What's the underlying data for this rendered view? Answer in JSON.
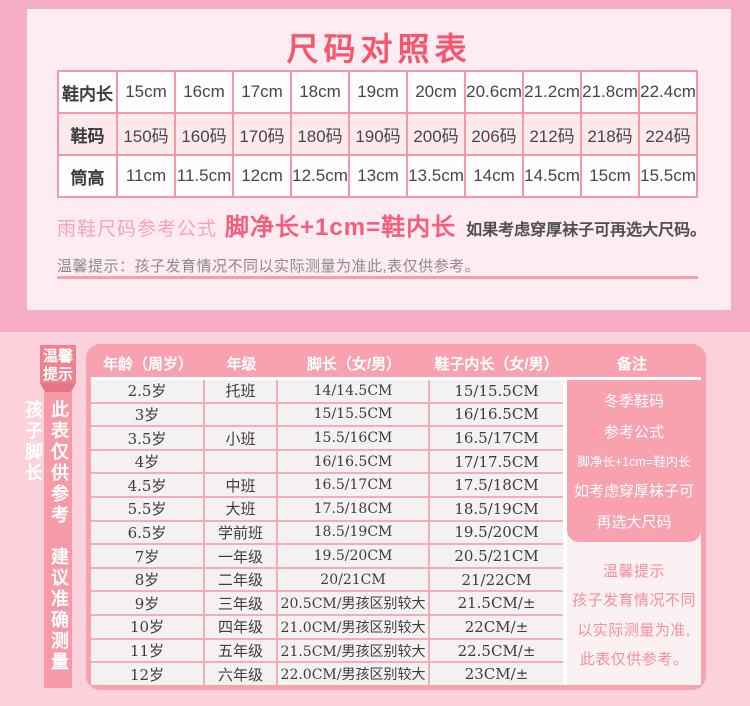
{
  "colors": {
    "accent_title": "#f4566e",
    "salmon_table": "#f7a2ae",
    "outer_background": "#f5aec5",
    "section_background": "#fbd2dc",
    "formula_text": "#f25f7d"
  },
  "chart_data": [
    {
      "type": "table",
      "title": "尺码对照表",
      "rows": [
        {
          "label": "鞋内长",
          "values": [
            "15cm",
            "16cm",
            "17cm",
            "18cm",
            "19cm",
            "20cm",
            "20.6cm",
            "21.2cm",
            "21.8cm",
            "22.4cm"
          ]
        },
        {
          "label": "鞋码",
          "values": [
            "150码",
            "160码",
            "170码",
            "180码",
            "190码",
            "200码",
            "206码",
            "212码",
            "218码",
            "224码"
          ]
        },
        {
          "label": "筒高",
          "values": [
            "11cm",
            "11.5cm",
            "12cm",
            "12.5cm",
            "13cm",
            "13.5cm",
            "14cm",
            "14.5cm",
            "15cm",
            "15.5cm"
          ]
        }
      ],
      "note_prefix": "雨鞋尺码参考公式",
      "note_formula": "脚净长+1cm=鞋内长",
      "note_suffix": "如果考虑穿厚袜子可再选大尺码。",
      "note_tip": "温馨提示：孩子发育情况不同以实际测量为准此,表仅供参考。"
    },
    {
      "type": "table",
      "sidebar_badge": "温馨提示",
      "sidebar_text": "此表仅供参考　建议准确测量孩子脚长",
      "headers": [
        "年龄（周岁）",
        "年级",
        "脚长（女/男）",
        "鞋子内长（女/男）",
        "备注"
      ],
      "rows": [
        {
          "age": "2.5岁",
          "grade": "托班",
          "foot": "14/14.5CM",
          "inner": "15/15.5CM"
        },
        {
          "age": "3岁",
          "grade": "",
          "foot": "15/15.5CM",
          "inner": "16/16.5CM"
        },
        {
          "age": "3.5岁",
          "grade": "小班",
          "foot": "15.5/16CM",
          "inner": "16.5/17CM"
        },
        {
          "age": "4岁",
          "grade": "",
          "foot": "16/16.5CM",
          "inner": "17/17.5CM"
        },
        {
          "age": "4.5岁",
          "grade": "中班",
          "foot": "16.5/17CM",
          "inner": "17.5/18CM"
        },
        {
          "age": "5.5岁",
          "grade": "大班",
          "foot": "17.5/18CM",
          "inner": "18.5/19CM"
        },
        {
          "age": "6.5岁",
          "grade": "学前班",
          "foot": "18.5/19CM",
          "inner": "19.5/20CM"
        },
        {
          "age": "7岁",
          "grade": "一年级",
          "foot": "19.5/20CM",
          "inner": "20.5/21CM"
        },
        {
          "age": "8岁",
          "grade": "二年级",
          "foot": "20/21CM",
          "inner": "21/22CM"
        },
        {
          "age": "9岁",
          "grade": "三年级",
          "foot": "20.5CM/男孩区别较大",
          "inner": "21.5CM/±"
        },
        {
          "age": "10岁",
          "grade": "四年级",
          "foot": "21.0CM/男孩区别较大",
          "inner": "22CM/±"
        },
        {
          "age": "11岁",
          "grade": "五年级",
          "foot": "21.5CM/男孩区别较大",
          "inner": "22.5CM/±"
        },
        {
          "age": "12岁",
          "grade": "六年级",
          "foot": "22.0CM/男孩区别较大",
          "inner": "23CM/±"
        }
      ],
      "remark_block_lines": [
        "冬季鞋码",
        "参考公式",
        "脚净长+1cm=鞋内长",
        "如考虑穿厚袜子可",
        "再选大尺码"
      ],
      "remark_note_lines": [
        "温馨提示",
        "孩子发育情况不同",
        "以实际测量为准,",
        "此表仅供参考。"
      ]
    }
  ]
}
